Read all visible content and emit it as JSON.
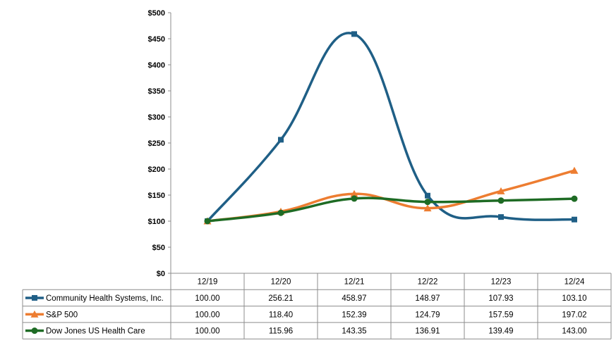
{
  "chart_data": {
    "type": "line",
    "categories": [
      "12/19",
      "12/20",
      "12/21",
      "12/22",
      "12/23",
      "12/24"
    ],
    "series": [
      {
        "name": "Community Health Systems, Inc.",
        "values": [
          100.0,
          256.21,
          458.97,
          148.97,
          107.93,
          103.1
        ],
        "labels": [
          "100.00",
          "256.21",
          "458.97",
          "148.97",
          "107.93",
          "103.10"
        ],
        "color": "#1f5f86",
        "marker": "square"
      },
      {
        "name": "S&P 500",
        "values": [
          100.0,
          118.4,
          152.39,
          124.79,
          157.59,
          197.02
        ],
        "labels": [
          "100.00",
          "118.40",
          "152.39",
          "124.79",
          "157.59",
          "197.02"
        ],
        "color": "#ed7d31",
        "marker": "triangle"
      },
      {
        "name": "Dow Jones US Health Care",
        "values": [
          100.0,
          115.96,
          143.35,
          136.91,
          139.49,
          143.0
        ],
        "labels": [
          "100.00",
          "115.96",
          "143.35",
          "136.91",
          "139.49",
          "143.00"
        ],
        "color": "#1e6b24",
        "marker": "circle"
      }
    ],
    "yticks": [
      "$0",
      "$50",
      "$100",
      "$150",
      "$200",
      "$250",
      "$300",
      "$350",
      "$400",
      "$450",
      "$500"
    ],
    "ylim": [
      0,
      500
    ],
    "grid": false,
    "legend": "data-table-below"
  }
}
